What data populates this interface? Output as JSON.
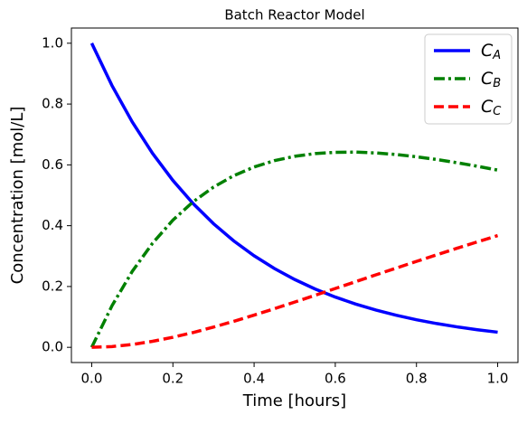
{
  "chart_data": {
    "type": "line",
    "title": "Batch Reactor Model",
    "xlabel": "Time [hours]",
    "ylabel": "Concentration [mol/L]",
    "x": [
      0,
      0.05,
      0.1,
      0.15,
      0.2,
      0.25,
      0.3,
      0.35,
      0.4,
      0.45,
      0.5,
      0.55,
      0.6,
      0.65,
      0.7,
      0.75,
      0.8,
      0.85,
      0.9,
      0.95,
      1.0
    ],
    "series": [
      {
        "name": "C_A",
        "color": "#0000ff",
        "linestyle": "solid",
        "values": [
          1,
          0.8607,
          0.7408,
          0.6376,
          0.5488,
          0.4724,
          0.4066,
          0.3499,
          0.3012,
          0.2592,
          0.2231,
          0.192,
          0.1653,
          0.1423,
          0.1225,
          0.1054,
          0.0907,
          0.0781,
          0.0672,
          0.0578,
          0.0498
        ]
      },
      {
        "name": "C_B",
        "color": "#008000",
        "linestyle": "dashdot",
        "values": [
          0,
          0.1368,
          0.2499,
          0.3426,
          0.4182,
          0.4788,
          0.5269,
          0.5645,
          0.5929,
          0.6138,
          0.6281,
          0.6371,
          0.6413,
          0.6419,
          0.6392,
          0.6341,
          0.6267,
          0.6176,
          0.607,
          0.5954,
          0.5828
        ]
      },
      {
        "name": "C_C",
        "color": "#ff0000",
        "linestyle": "dashed",
        "values": [
          0,
          0.0025,
          0.0093,
          0.0198,
          0.033,
          0.0488,
          0.0665,
          0.0856,
          0.1059,
          0.127,
          0.1488,
          0.1709,
          0.1934,
          0.2158,
          0.2383,
          0.2605,
          0.2826,
          0.3043,
          0.3258,
          0.3468,
          0.3674
        ]
      }
    ],
    "xlim": [
      -0.05,
      1.05
    ],
    "xticks": [
      {
        "value": 0,
        "label": "0.0"
      },
      0.2,
      0.4,
      0.6,
      0.8,
      {
        "value": 1,
        "label": "1.0"
      }
    ],
    "ylim": [
      -0.05,
      1.05
    ],
    "yticks": [
      {
        "value": 0,
        "label": "0.0"
      },
      0.2,
      0.4,
      0.6,
      0.8,
      {
        "value": 1,
        "label": "1.0"
      }
    ],
    "grid": false,
    "legend": "upper right"
  }
}
